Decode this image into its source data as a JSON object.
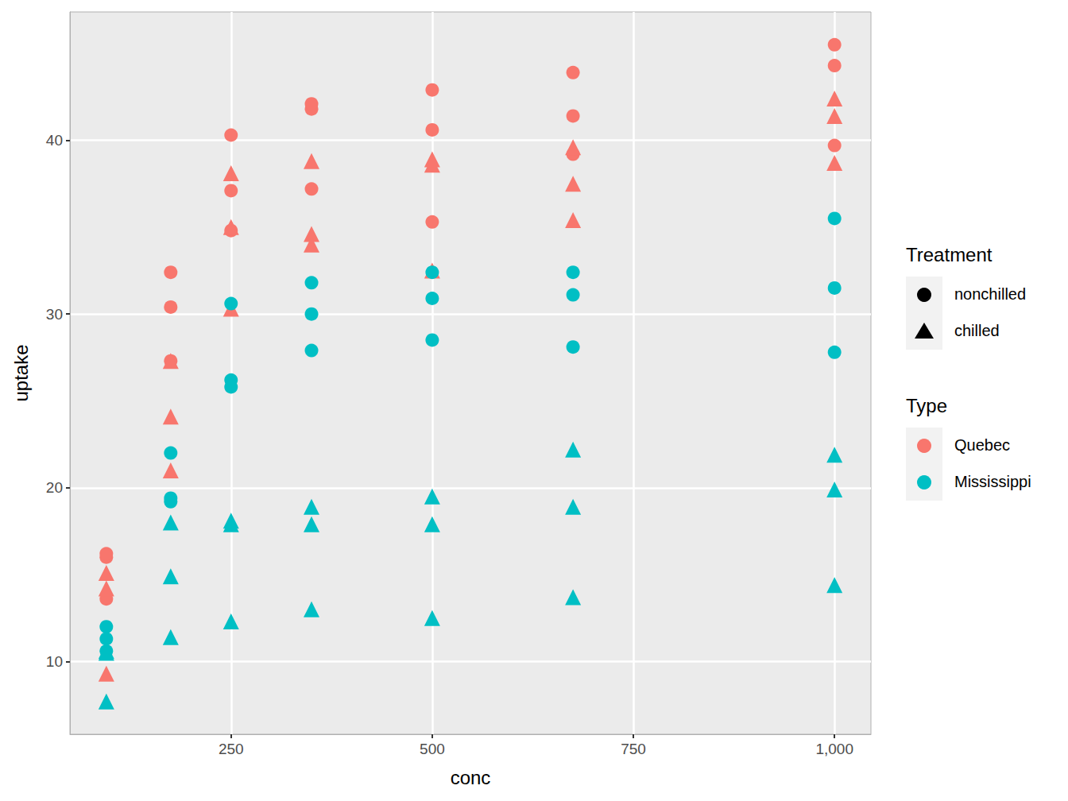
{
  "chart_data": {
    "type": "scatter",
    "x_label": "conc",
    "y_label": "uptake",
    "xlim": [
      49.75,
      1045.25
    ],
    "xticks": [
      250,
      500,
      750,
      1000
    ],
    "ylim": [
      5.81,
      47.39
    ],
    "yticks": [
      10,
      20,
      30,
      40
    ],
    "grid": true,
    "legends": [
      {
        "title": "Treatment",
        "entries": [
          {
            "label": "nonchilled",
            "marker": "circle"
          },
          {
            "label": "chilled",
            "marker": "triangle"
          }
        ]
      },
      {
        "title": "Type",
        "entries": [
          {
            "label": "Quebec",
            "color": "#f8766d"
          },
          {
            "label": "Mississippi",
            "color": "#00bfc4"
          }
        ]
      }
    ],
    "series": [
      {
        "type_name": "Quebec",
        "treatment": "nonchilled",
        "x": [
          95,
          175,
          250,
          350,
          500,
          675,
          1000,
          95,
          175,
          250,
          350,
          500,
          675,
          1000,
          95,
          175,
          250,
          350,
          500,
          675,
          1000
        ],
        "values": [
          16.0,
          30.4,
          34.8,
          37.2,
          35.3,
          39.2,
          39.7,
          13.6,
          27.3,
          37.1,
          41.8,
          40.6,
          41.4,
          44.3,
          16.2,
          32.4,
          40.3,
          42.1,
          42.9,
          43.9,
          45.5
        ]
      },
      {
        "type_name": "Quebec",
        "treatment": "chilled",
        "x": [
          95,
          175,
          250,
          350,
          500,
          675,
          1000,
          95,
          175,
          250,
          350,
          500,
          675,
          1000,
          95,
          175,
          250,
          350,
          500,
          675,
          1000
        ],
        "values": [
          14.2,
          24.1,
          30.3,
          34.6,
          32.5,
          35.4,
          38.7,
          9.3,
          27.3,
          35.0,
          38.8,
          38.6,
          37.5,
          42.4,
          15.1,
          21.0,
          38.1,
          34.0,
          38.9,
          39.6,
          41.4
        ]
      },
      {
        "type_name": "Mississippi",
        "treatment": "nonchilled",
        "x": [
          95,
          175,
          250,
          350,
          500,
          675,
          1000,
          95,
          175,
          250,
          350,
          500,
          675,
          1000,
          95,
          175,
          250,
          350,
          500,
          675,
          1000
        ],
        "values": [
          10.6,
          19.2,
          26.2,
          30.0,
          30.9,
          32.4,
          35.5,
          12.0,
          22.0,
          30.6,
          31.8,
          32.4,
          31.1,
          31.5,
          11.3,
          19.4,
          25.8,
          27.9,
          28.5,
          28.1,
          27.8
        ]
      },
      {
        "type_name": "Mississippi",
        "treatment": "chilled",
        "x": [
          95,
          175,
          250,
          350,
          500,
          675,
          1000,
          95,
          175,
          250,
          350,
          500,
          675,
          1000,
          95,
          175,
          250,
          350,
          500,
          675,
          1000
        ],
        "values": [
          10.5,
          14.9,
          18.1,
          18.9,
          19.5,
          22.2,
          21.9,
          7.7,
          11.4,
          12.3,
          13.0,
          12.5,
          13.7,
          14.4,
          10.6,
          18.0,
          17.9,
          17.9,
          17.9,
          18.9,
          19.9
        ]
      }
    ]
  }
}
